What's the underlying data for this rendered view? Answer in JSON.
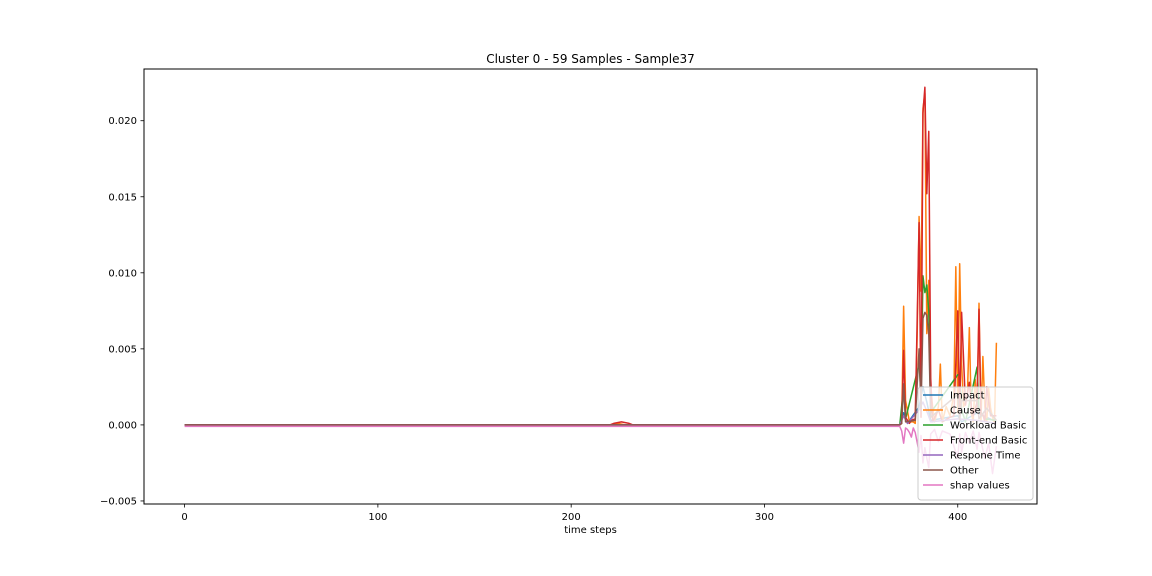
{
  "chart_data": {
    "type": "line",
    "title": "Cluster 0 - 59 Samples - Sample37",
    "xlabel": "time steps",
    "ylabel": "",
    "xlim": [
      -21,
      441
    ],
    "ylim": [
      -0.0052,
      0.0234
    ],
    "xticks": [
      0,
      100,
      200,
      300,
      400
    ],
    "xtick_labels": [
      "0",
      "100",
      "200",
      "300",
      "400"
    ],
    "yticks": [
      -0.005,
      0.0,
      0.005,
      0.01,
      0.015,
      0.02
    ],
    "ytick_labels": [
      "−0.005",
      "0.000",
      "0.005",
      "0.010",
      "0.015",
      "0.020"
    ],
    "grid": false,
    "legend_position": "lower-right",
    "series": [
      {
        "name": "Impact",
        "color": "#1f77b4",
        "points": [
          [
            0,
            0
          ],
          [
            370,
            0
          ],
          [
            372,
            0.0008
          ],
          [
            374,
            0.0001
          ],
          [
            380,
            0.0012
          ],
          [
            382,
            0.0025
          ],
          [
            384,
            0.0015
          ],
          [
            386,
            0.0003
          ],
          [
            400,
            0.0006
          ],
          [
            402,
            0.0002
          ],
          [
            410,
            0.0008
          ],
          [
            420,
            0.0002
          ]
        ]
      },
      {
        "name": "Cause",
        "color": "#ff7f0e",
        "points": [
          [
            0,
            0
          ],
          [
            220,
            0
          ],
          [
            224,
            0.0001
          ],
          [
            228,
            0
          ],
          [
            370,
            0
          ],
          [
            371,
            0.0002
          ],
          [
            372,
            0.0078
          ],
          [
            373,
            0.0016
          ],
          [
            375,
            0.0002
          ],
          [
            377,
            0.0002
          ],
          [
            378,
            0.0001
          ],
          [
            379,
            0.0058
          ],
          [
            380,
            0.0137
          ],
          [
            381,
            0.0088
          ],
          [
            382,
            0.0208
          ],
          [
            383,
            0.0218
          ],
          [
            384,
            0.006
          ],
          [
            385,
            0.0095
          ],
          [
            386,
            0.0025
          ],
          [
            387,
            0.0012
          ],
          [
            388,
            0.0002
          ],
          [
            390,
            0.0012
          ],
          [
            391,
            0.004
          ],
          [
            392,
            0.0002
          ],
          [
            394,
            0.0012
          ],
          [
            396,
            0.0006
          ],
          [
            398,
            0.002
          ],
          [
            399,
            0.0104
          ],
          [
            400,
            0.0008
          ],
          [
            401,
            0.0106
          ],
          [
            402,
            0.004
          ],
          [
            403,
            0.0012
          ],
          [
            404,
            0.0015
          ],
          [
            405,
            0.002
          ],
          [
            406,
            0.0064
          ],
          [
            407,
            0.0008
          ],
          [
            408,
            0.0002
          ],
          [
            409,
            0.003
          ],
          [
            410,
            0.001
          ],
          [
            411,
            0.008
          ],
          [
            412,
            0.0002
          ],
          [
            413,
            0.0045
          ],
          [
            414,
            0.0012
          ],
          [
            415,
            0.0002
          ],
          [
            416,
            0.0024
          ],
          [
            417,
            0.0011
          ],
          [
            418,
            0.0005
          ],
          [
            419,
            0.0001
          ],
          [
            420,
            0.0054
          ]
        ]
      },
      {
        "name": "Workload Basic",
        "color": "#2ca02c",
        "points": [
          [
            0,
            0
          ],
          [
            370,
            0
          ],
          [
            372,
            0.0025
          ],
          [
            373,
            0.0004
          ],
          [
            380,
            0.004
          ],
          [
            381,
            0.002
          ],
          [
            382,
            0.0098
          ],
          [
            383,
            0.0087
          ],
          [
            384,
            0.0092
          ],
          [
            385,
            0.0075
          ],
          [
            386,
            0.0008
          ],
          [
            400,
            0.0033
          ],
          [
            401,
            0.0033
          ],
          [
            402,
            0.001
          ],
          [
            404,
            0.0002
          ],
          [
            410,
            0.0038
          ],
          [
            411,
            0.001
          ],
          [
            414,
            0.0004
          ],
          [
            420,
            0.0003
          ]
        ]
      },
      {
        "name": "Front-end Basic",
        "color": "#d62728",
        "points": [
          [
            0,
            0
          ],
          [
            220,
            0
          ],
          [
            222,
            0.0001
          ],
          [
            226,
            0.0002
          ],
          [
            230,
            0.0001
          ],
          [
            232,
            0
          ],
          [
            370,
            0
          ],
          [
            371,
            0.0001
          ],
          [
            372,
            0.0049
          ],
          [
            373,
            0.0005
          ],
          [
            375,
            0.0001
          ],
          [
            376,
            0.0003
          ],
          [
            378,
            0.0004
          ],
          [
            380,
            0.0133
          ],
          [
            381,
            0.0005
          ],
          [
            382,
            0.0205
          ],
          [
            383,
            0.0222
          ],
          [
            384,
            0.0152
          ],
          [
            385,
            0.0193
          ],
          [
            386,
            0.0031
          ],
          [
            387,
            0.0002
          ],
          [
            390,
            0.001
          ],
          [
            392,
            0.0002
          ],
          [
            396,
            0.0005
          ],
          [
            398,
            0.0006
          ],
          [
            400,
            0.0075
          ],
          [
            401,
            0.0008
          ],
          [
            402,
            0.0074
          ],
          [
            404,
            0.0013
          ],
          [
            406,
            0.0028
          ],
          [
            407,
            0.0012
          ],
          [
            408,
            0.0006
          ],
          [
            410,
            0.0015
          ],
          [
            411,
            0.0076
          ],
          [
            412,
            0.0006
          ],
          [
            413,
            0.0007
          ],
          [
            414,
            0.0002
          ],
          [
            415,
            0.0025
          ],
          [
            416,
            0.0015
          ],
          [
            417,
            0.0006
          ],
          [
            418,
            0.0006
          ],
          [
            420,
            0.0006
          ]
        ]
      },
      {
        "name": "Respone Time",
        "color": "#9467bd",
        "points": [
          [
            0,
            0
          ],
          [
            370,
            0
          ],
          [
            372,
            0.0006
          ],
          [
            374,
            0.0001
          ],
          [
            380,
            0.001
          ],
          [
            382,
            0.0015
          ],
          [
            384,
            0.0009
          ],
          [
            386,
            0.0002
          ],
          [
            400,
            0.0004
          ],
          [
            410,
            0.0003
          ],
          [
            420,
            0.0001
          ]
        ]
      },
      {
        "name": "Other",
        "color": "#8c564b",
        "points": [
          [
            0,
            0
          ],
          [
            370,
            0
          ],
          [
            371,
            0.0001
          ],
          [
            372,
            0.0027
          ],
          [
            373,
            0.0002
          ],
          [
            378,
            0.0003
          ],
          [
            380,
            0.005
          ],
          [
            381,
            0.001
          ],
          [
            382,
            0.007
          ],
          [
            383,
            0.0074
          ],
          [
            384,
            0.0072
          ],
          [
            385,
            0.006
          ],
          [
            386,
            0.0005
          ],
          [
            400,
            0.002
          ],
          [
            401,
            0.0003
          ],
          [
            402,
            0.0016
          ],
          [
            410,
            0.0016
          ],
          [
            411,
            0.0004
          ],
          [
            415,
            0.0011
          ],
          [
            420,
            0.0003
          ]
        ]
      },
      {
        "name": "shap values",
        "color": "#e377c2",
        "points": [
          [
            0,
            -0.0001
          ],
          [
            370,
            -0.0001
          ],
          [
            371,
            -0.0004
          ],
          [
            372,
            -0.0012
          ],
          [
            373,
            -0.0002
          ],
          [
            374,
            -0.0003
          ],
          [
            375,
            -0.0005
          ],
          [
            376,
            -0.0008
          ],
          [
            377,
            -0.0002
          ],
          [
            378,
            -0.0005
          ],
          [
            380,
            -0.0018
          ],
          [
            381,
            -0.0007
          ],
          [
            382,
            -0.0025
          ],
          [
            383,
            -0.0015
          ],
          [
            384,
            -0.0022
          ],
          [
            385,
            -0.0028
          ],
          [
            386,
            -0.0006
          ],
          [
            388,
            -0.0003
          ],
          [
            390,
            -0.0011
          ],
          [
            392,
            -0.0004
          ],
          [
            396,
            -0.0006
          ],
          [
            400,
            -0.0022
          ],
          [
            401,
            -0.0006
          ],
          [
            402,
            -0.0018
          ],
          [
            404,
            -0.0005
          ],
          [
            406,
            -0.0012
          ],
          [
            408,
            -0.0004
          ],
          [
            410,
            -0.0016
          ],
          [
            411,
            -0.0005
          ],
          [
            414,
            -0.0022
          ],
          [
            416,
            -0.0012
          ],
          [
            418,
            -0.0032
          ],
          [
            420,
            -0.0014
          ]
        ]
      }
    ]
  }
}
